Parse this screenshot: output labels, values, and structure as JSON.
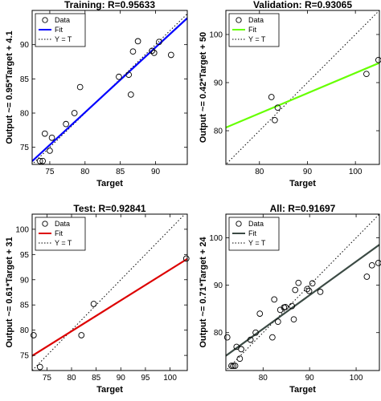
{
  "chart_data": [
    {
      "type": "scatter",
      "title": "Training: R=0.95633",
      "xlabel": "Target",
      "ylabel": "Output ~= 0.95*Target + 4.1",
      "xlim": [
        72.5,
        94.5
      ],
      "ylim": [
        72.5,
        95
      ],
      "xticks": [
        75,
        80,
        85,
        90
      ],
      "yticks": [
        75,
        80,
        85,
        90
      ],
      "fit": {
        "slope": 0.95,
        "intercept": 4.1,
        "color": "#0000ff"
      },
      "legend": [
        "Data",
        "Fit",
        "Y = T"
      ],
      "legend_position": "top-left",
      "points": [
        [
          73.6,
          73
        ],
        [
          74,
          73
        ],
        [
          74.3,
          77
        ],
        [
          75,
          74.5
        ],
        [
          75.3,
          76.4
        ],
        [
          77.3,
          78.4
        ],
        [
          78.5,
          80
        ],
        [
          79.3,
          83.8
        ],
        [
          84.8,
          85.3
        ],
        [
          86.2,
          85.6
        ],
        [
          86.5,
          82.7
        ],
        [
          86.8,
          89
        ],
        [
          87.5,
          90.5
        ],
        [
          89.5,
          89.1
        ],
        [
          89.8,
          88.8
        ],
        [
          90.5,
          90.4
        ],
        [
          92.2,
          88.5
        ]
      ]
    },
    {
      "type": "scatter",
      "title": "Validation: R=0.93065",
      "xlabel": "Target",
      "ylabel": "Output ~= 0.42*Target + 50",
      "xlim": [
        73,
        105
      ],
      "ylim": [
        73,
        105
      ],
      "xticks": [
        80,
        90,
        100
      ],
      "yticks": [
        80,
        90,
        100
      ],
      "fit": {
        "slope": 0.42,
        "intercept": 50,
        "color": "#66ff00"
      },
      "legend": [
        "Data",
        "Fit",
        "Y = T"
      ],
      "legend_position": "top-left",
      "points": [
        [
          82.5,
          87
        ],
        [
          83.2,
          82.2
        ],
        [
          83.8,
          84.8
        ],
        [
          102.3,
          91.8
        ],
        [
          104.8,
          94.7
        ]
      ]
    },
    {
      "type": "scatter",
      "title": "Test: R=0.92841",
      "xlabel": "Target",
      "ylabel": "Output ~= 0.61*Target + 31",
      "xlim": [
        72,
        103.5
      ],
      "ylim": [
        72,
        103
      ],
      "xticks": [
        75,
        80,
        85,
        90,
        95,
        100
      ],
      "yticks": [
        75,
        80,
        85,
        90,
        95,
        100
      ],
      "fit": {
        "slope": 0.61,
        "intercept": 31,
        "color": "#dd0000"
      },
      "legend": [
        "Data",
        "Fit",
        "Y = T"
      ],
      "legend_position": "top-left",
      "points": [
        [
          72.3,
          79
        ],
        [
          73.6,
          72.7
        ],
        [
          82,
          79
        ],
        [
          84.5,
          85.2
        ],
        [
          103.3,
          94.2
        ]
      ]
    },
    {
      "type": "scatter",
      "title": "All: R=0.91697",
      "xlabel": "Target",
      "ylabel": "Output ~= 0.71*Target + 24",
      "xlim": [
        72,
        105
      ],
      "ylim": [
        72,
        105
      ],
      "xticks": [
        80,
        90,
        100
      ],
      "yticks": [
        80,
        90,
        100
      ],
      "fit": {
        "slope": 0.71,
        "intercept": 24,
        "color": "#3b4a44"
      },
      "legend": [
        "Data",
        "Fit",
        "Y = T"
      ],
      "legend_position": "top-left",
      "points": [
        [
          72.3,
          79
        ],
        [
          73.2,
          73
        ],
        [
          73.6,
          73
        ],
        [
          74,
          73
        ],
        [
          74.3,
          77
        ],
        [
          75,
          74.5
        ],
        [
          75.3,
          76.5
        ],
        [
          77.3,
          78.5
        ],
        [
          78.4,
          80
        ],
        [
          79.3,
          84
        ],
        [
          82,
          79
        ],
        [
          82.4,
          87
        ],
        [
          83.2,
          82.3
        ],
        [
          83.7,
          84.8
        ],
        [
          84.5,
          85.3
        ],
        [
          84.8,
          85.4
        ],
        [
          86.2,
          85.6
        ],
        [
          86.6,
          82.8
        ],
        [
          86.9,
          89
        ],
        [
          87.6,
          90.5
        ],
        [
          89.5,
          89.2
        ],
        [
          89.9,
          88.8
        ],
        [
          90.6,
          90.4
        ],
        [
          92.3,
          88.6
        ],
        [
          102.3,
          91.8
        ],
        [
          103.4,
          94.2
        ],
        [
          104.8,
          94.7
        ]
      ]
    }
  ]
}
